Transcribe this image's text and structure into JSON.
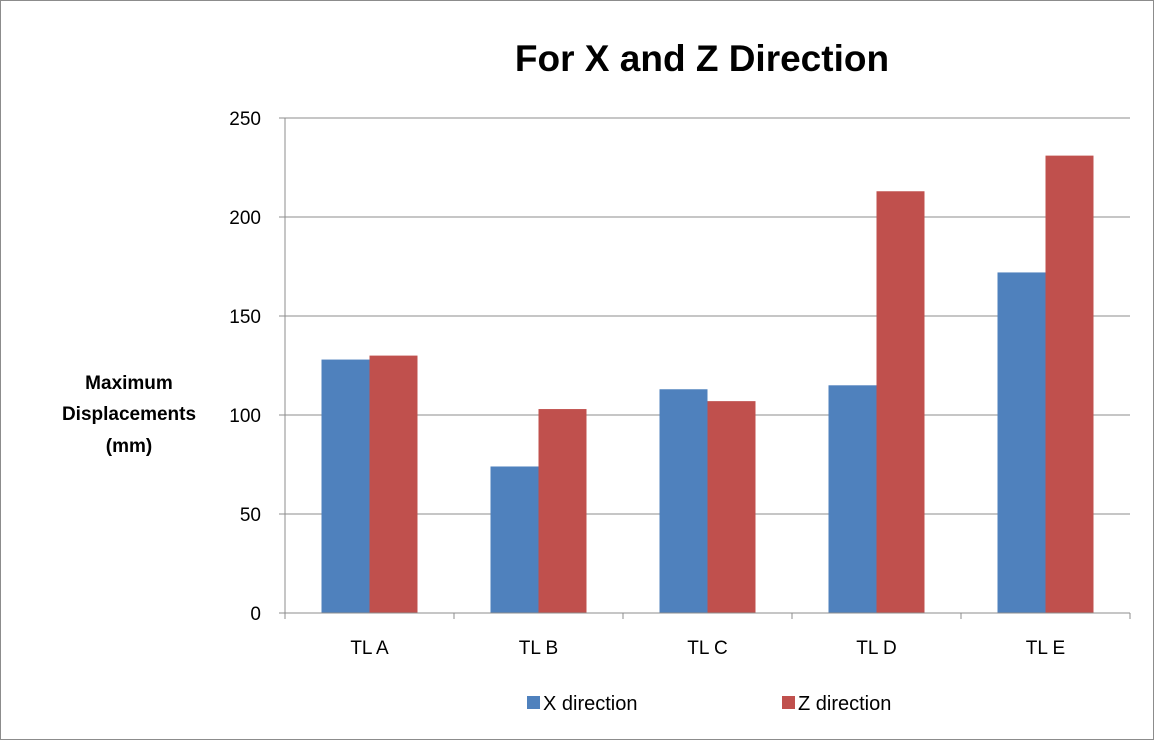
{
  "chart_data": {
    "type": "bar",
    "title": "For X and Z Direction",
    "ylabel_lines": [
      "Maximum",
      "Displacements",
      "(mm)"
    ],
    "xlabel": "",
    "categories": [
      "TL A",
      "TL B",
      "TL C",
      "TL D",
      "TL E"
    ],
    "series": [
      {
        "name": "X direction",
        "color": "#4f81bd",
        "values": [
          128,
          74,
          113,
          115,
          172
        ]
      },
      {
        "name": "Z direction",
        "color": "#c0504d",
        "values": [
          130,
          103,
          107,
          213,
          231
        ]
      }
    ],
    "ylim": [
      0,
      250
    ],
    "yticks": [
      0,
      50,
      100,
      150,
      200,
      250
    ],
    "grid": true,
    "legend_position": "bottom"
  }
}
